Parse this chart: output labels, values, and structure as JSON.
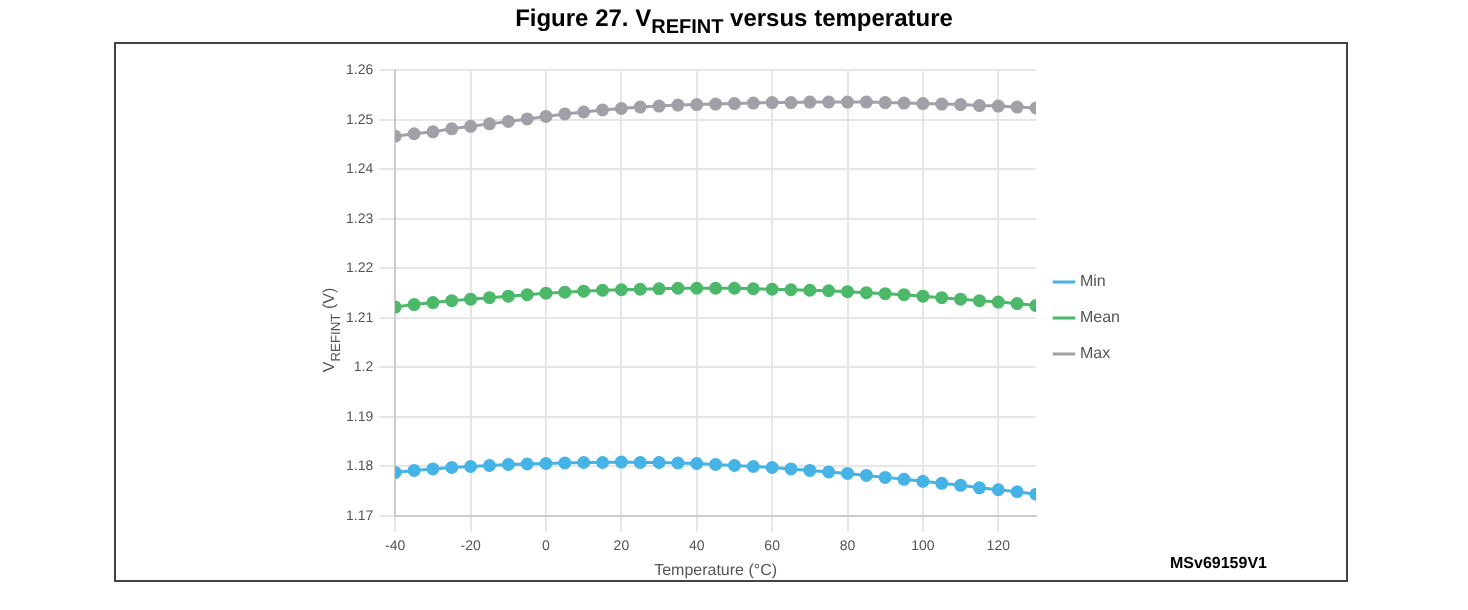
{
  "chart_data": {
    "type": "line",
    "title": "Figure 27. V$_{REFINT}$ versus temperature",
    "xlabel": "Temperature (°C)",
    "ylabel": "V$_{REFINT}$ (V)",
    "x": [
      -40,
      -35,
      -30,
      -25,
      -20,
      -15,
      -10,
      -5,
      0,
      5,
      10,
      15,
      20,
      25,
      30,
      35,
      40,
      45,
      50,
      55,
      60,
      65,
      70,
      75,
      80,
      85,
      90,
      95,
      100,
      105,
      110,
      115,
      120,
      125,
      130
    ],
    "series": [
      {
        "name": "Min",
        "color": "#45b3e6",
        "values": [
          1.1788,
          1.1792,
          1.1795,
          1.1798,
          1.18,
          1.1802,
          1.1804,
          1.1805,
          1.1806,
          1.1807,
          1.1808,
          1.1808,
          1.1809,
          1.1808,
          1.1808,
          1.1807,
          1.1806,
          1.1804,
          1.1802,
          1.18,
          1.1798,
          1.1795,
          1.1792,
          1.1789,
          1.1786,
          1.1782,
          1.1778,
          1.1774,
          1.177,
          1.1766,
          1.1762,
          1.1757,
          1.1753,
          1.1749,
          1.1744
        ]
      },
      {
        "name": "Mean",
        "color": "#4cb86a",
        "values": [
          1.2122,
          1.2127,
          1.2131,
          1.2135,
          1.2138,
          1.2141,
          1.2144,
          1.2147,
          1.215,
          1.2152,
          1.2154,
          1.2156,
          1.2157,
          1.2158,
          1.2159,
          1.216,
          1.216,
          1.216,
          1.216,
          1.2159,
          1.2158,
          1.2157,
          1.2156,
          1.2155,
          1.2153,
          1.2151,
          1.2149,
          1.2147,
          1.2144,
          1.2141,
          1.2138,
          1.2135,
          1.2132,
          1.2129,
          1.2125
        ]
      },
      {
        "name": "Max",
        "color": "#a0a0a8",
        "values": [
          1.2467,
          1.2472,
          1.2476,
          1.2482,
          1.2487,
          1.2492,
          1.2497,
          1.2502,
          1.2507,
          1.2512,
          1.2516,
          1.252,
          1.2523,
          1.2526,
          1.2528,
          1.253,
          1.2531,
          1.2532,
          1.2533,
          1.2534,
          1.2535,
          1.2535,
          1.2536,
          1.2536,
          1.2536,
          1.2536,
          1.2535,
          1.2534,
          1.2533,
          1.2532,
          1.2531,
          1.2529,
          1.2528,
          1.2526,
          1.2524
        ]
      }
    ],
    "xlim": [
      -40,
      130
    ],
    "xticks": [
      -40,
      -20,
      0,
      20,
      40,
      60,
      80,
      100,
      120
    ],
    "ylim": [
      1.17,
      1.26
    ],
    "yticks": [
      1.17,
      1.18,
      1.19,
      1.2,
      1.21,
      1.22,
      1.23,
      1.24,
      1.25,
      1.26
    ],
    "grid": true,
    "legend": "right",
    "marker": "circle",
    "line_style": "solid",
    "annotations": [
      "MSv69159V1"
    ]
  }
}
